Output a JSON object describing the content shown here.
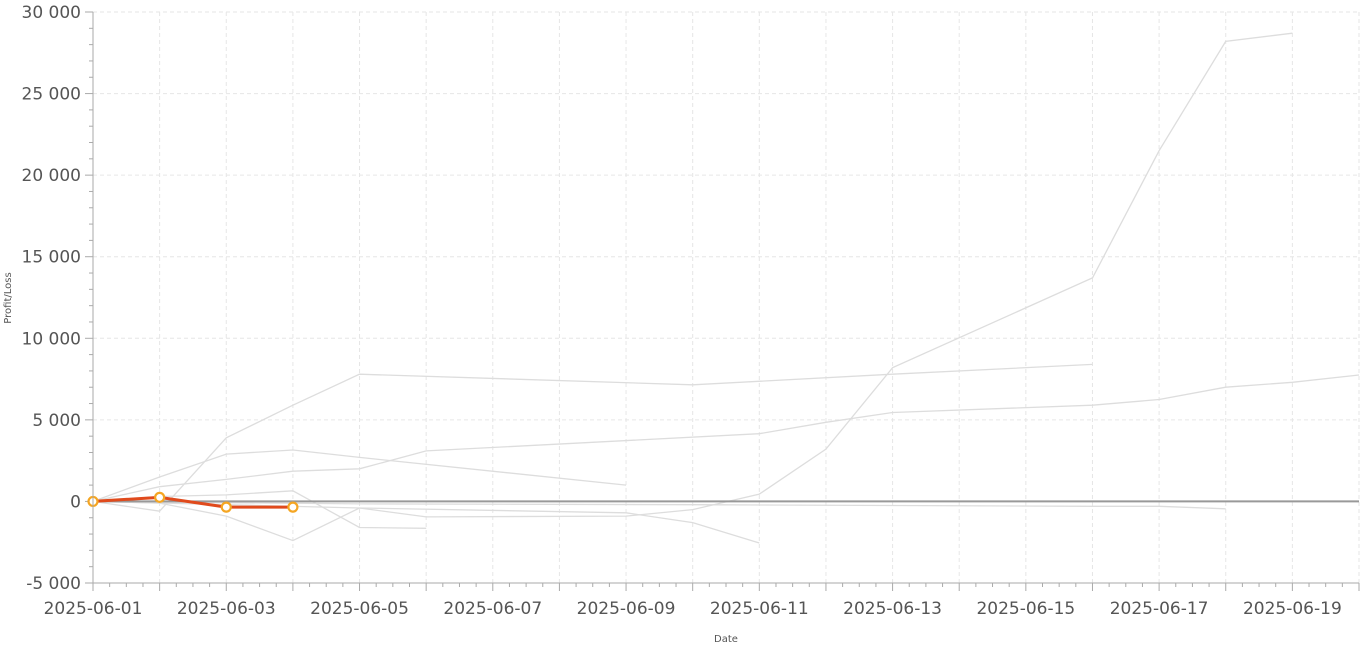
{
  "chart_data": {
    "type": "line",
    "title": "",
    "xlabel": "Date",
    "ylabel": "Profit/Loss",
    "x_type": "date",
    "xlim": [
      "2025-06-01",
      "2025-06-20"
    ],
    "ylim": [
      -5000,
      30000
    ],
    "x_ticks": [
      "2025-06-01",
      "2025-06-03",
      "2025-06-05",
      "2025-06-07",
      "2025-06-09",
      "2025-06-11",
      "2025-06-13",
      "2025-06-15",
      "2025-06-17",
      "2025-06-19"
    ],
    "y_ticks": [
      -5000,
      0,
      5000,
      10000,
      15000,
      20000,
      25000,
      30000
    ],
    "y_tick_labels": [
      "-5 000",
      "0",
      "5 000",
      "10 000",
      "15 000",
      "20 000",
      "25 000",
      "30 000"
    ],
    "grid": true,
    "grid_style": "dashed",
    "legend": "none",
    "baseline": 0,
    "colors": {
      "background_series": "#dddddd",
      "highlight_line": "#e04a1c",
      "highlight_marker_stroke": "#f5a623",
      "highlight_marker_fill": "#ffffff",
      "baseline": "#999999",
      "grid": "#e6e6e6",
      "axis": "#aaaaaa"
    },
    "series": [
      {
        "highlight": false,
        "points": [
          [
            "2025-06-01",
            0
          ],
          [
            "2025-06-02",
            -600
          ],
          [
            "2025-06-03",
            3900
          ],
          [
            "2025-06-04",
            5900
          ],
          [
            "2025-06-05",
            7800
          ],
          [
            "2025-06-10",
            7150
          ],
          [
            "2025-06-13",
            7800
          ],
          [
            "2025-06-16",
            8400
          ]
        ]
      },
      {
        "highlight": false,
        "points": [
          [
            "2025-06-01",
            0
          ],
          [
            "2025-06-02",
            1500
          ],
          [
            "2025-06-03",
            2900
          ],
          [
            "2025-06-04",
            3150
          ],
          [
            "2025-06-05",
            2700
          ],
          [
            "2025-06-09",
            1000
          ]
        ]
      },
      {
        "highlight": false,
        "points": [
          [
            "2025-06-01",
            0
          ],
          [
            "2025-06-02",
            900
          ],
          [
            "2025-06-03",
            1350
          ],
          [
            "2025-06-04",
            1850
          ],
          [
            "2025-06-05",
            2000
          ],
          [
            "2025-06-06",
            3100
          ],
          [
            "2025-06-11",
            4150
          ],
          [
            "2025-06-12",
            4850
          ],
          [
            "2025-06-13",
            5450
          ],
          [
            "2025-06-16",
            5900
          ],
          [
            "2025-06-17",
            6250
          ],
          [
            "2025-06-18",
            7000
          ],
          [
            "2025-06-19",
            7300
          ],
          [
            "2025-06-20",
            7750
          ]
        ]
      },
      {
        "highlight": false,
        "points": [
          [
            "2025-06-01",
            0
          ],
          [
            "2025-06-02",
            -100
          ],
          [
            "2025-06-03",
            -900
          ],
          [
            "2025-06-04",
            -2400
          ],
          [
            "2025-06-05",
            -400
          ],
          [
            "2025-06-06",
            -950
          ],
          [
            "2025-06-09",
            -900
          ],
          [
            "2025-06-10",
            -500
          ],
          [
            "2025-06-11",
            450
          ],
          [
            "2025-06-12",
            3200
          ],
          [
            "2025-06-13",
            8200
          ],
          [
            "2025-06-16",
            13700
          ],
          [
            "2025-06-17",
            21500
          ],
          [
            "2025-06-18",
            28200
          ],
          [
            "2025-06-19",
            28700
          ]
        ]
      },
      {
        "highlight": false,
        "points": [
          [
            "2025-06-01",
            0
          ],
          [
            "2025-06-02",
            300
          ],
          [
            "2025-06-03",
            400
          ],
          [
            "2025-06-04",
            650
          ],
          [
            "2025-06-05",
            -1600
          ],
          [
            "2025-06-06",
            -1650
          ]
        ]
      },
      {
        "highlight": false,
        "points": [
          [
            "2025-06-01",
            0
          ],
          [
            "2025-06-05",
            -400
          ],
          [
            "2025-06-09",
            -700
          ],
          [
            "2025-06-10",
            -1300
          ],
          [
            "2025-06-11",
            -2550
          ]
        ]
      },
      {
        "highlight": false,
        "points": [
          [
            "2025-06-01",
            0
          ],
          [
            "2025-06-05",
            -150
          ],
          [
            "2025-06-10",
            -200
          ],
          [
            "2025-06-13",
            -250
          ],
          [
            "2025-06-16",
            -300
          ],
          [
            "2025-06-17",
            -300
          ],
          [
            "2025-06-18",
            -450
          ]
        ]
      },
      {
        "highlight": true,
        "points": [
          [
            "2025-06-01",
            0
          ],
          [
            "2025-06-02",
            250
          ],
          [
            "2025-06-03",
            -350
          ],
          [
            "2025-06-04",
            -350
          ]
        ]
      }
    ]
  }
}
